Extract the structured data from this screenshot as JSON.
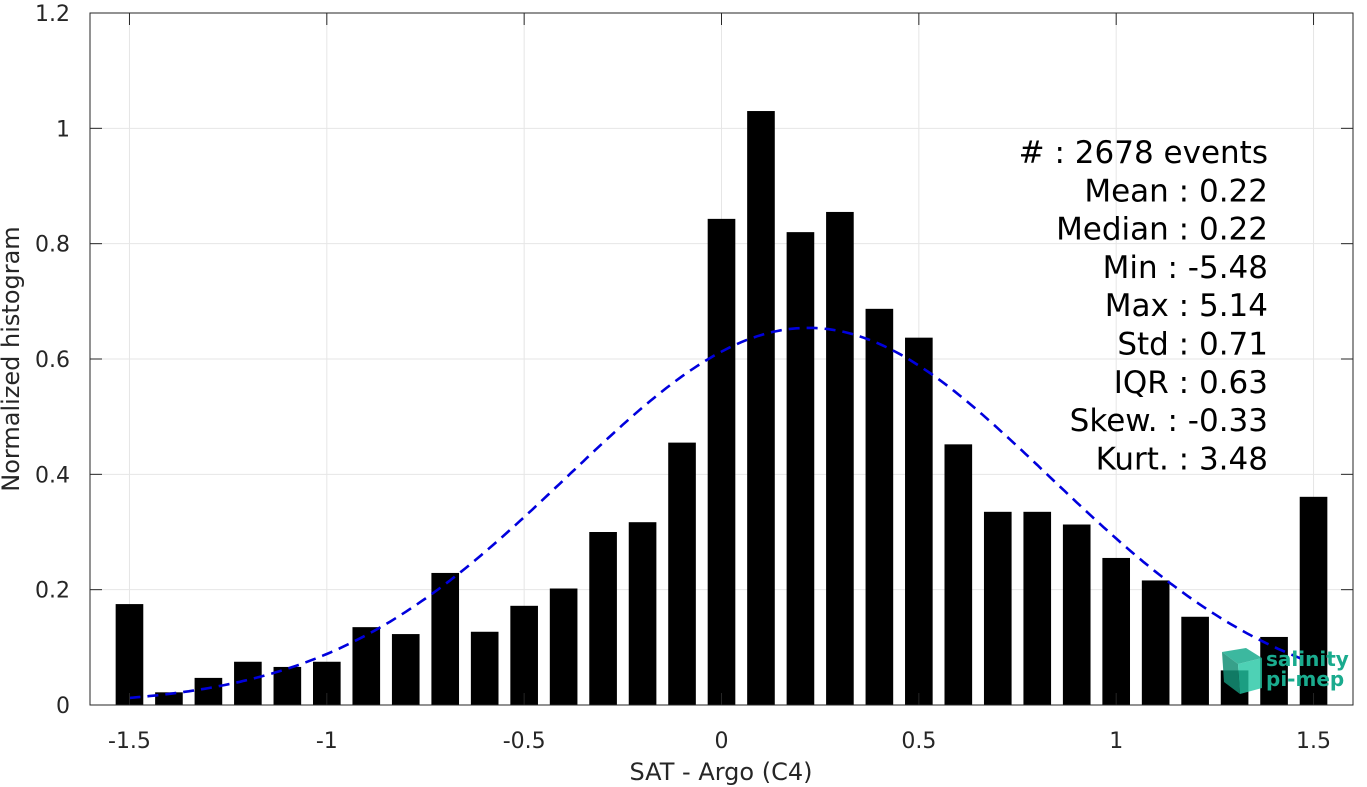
{
  "chart_data": {
    "type": "bar",
    "xlabel": "SAT - Argo (C4)",
    "ylabel": "Normalized histogram",
    "xlim": [
      -1.6,
      1.6
    ],
    "ylim": [
      0,
      1.2
    ],
    "xticks": [
      -1.5,
      -1,
      -0.5,
      0,
      0.5,
      1,
      1.5
    ],
    "xtick_labels": [
      "-1.5",
      "-1",
      "-0.5",
      "0",
      "0.5",
      "1",
      "1.5"
    ],
    "yticks": [
      0,
      0.2,
      0.4,
      0.6,
      0.8,
      1,
      1.2
    ],
    "ytick_labels": [
      "0",
      "0.2",
      "0.4",
      "0.6",
      "0.8",
      "1",
      "1.2"
    ],
    "grid": true,
    "bin_width": 0.1,
    "bar_color": "#000000",
    "x": [
      -1.5,
      -1.4,
      -1.3,
      -1.2,
      -1.1,
      -1.0,
      -0.9,
      -0.8,
      -0.7,
      -0.6,
      -0.5,
      -0.4,
      -0.3,
      -0.2,
      -0.1,
      0.0,
      0.1,
      0.2,
      0.3,
      0.4,
      0.5,
      0.6,
      0.7,
      0.8,
      0.9,
      1.0,
      1.1,
      1.2,
      1.3,
      1.4,
      1.5
    ],
    "values": [
      0.175,
      0.022,
      0.047,
      0.075,
      0.066,
      0.075,
      0.135,
      0.123,
      0.229,
      0.127,
      0.172,
      0.202,
      0.3,
      0.317,
      0.455,
      0.843,
      1.03,
      0.82,
      0.855,
      0.687,
      0.637,
      0.452,
      0.335,
      0.335,
      0.313,
      0.255,
      0.216,
      0.153,
      0.06,
      0.118,
      0.361
    ],
    "fit": {
      "type": "gaussian",
      "mean": 0.22,
      "std": 0.61,
      "peak": 0.654,
      "color": "#0000dd",
      "style": "dashed",
      "x_range": [
        -1.5,
        1.48
      ]
    },
    "annotations": [
      "#  : 2678 events",
      "Mean : 0.22",
      "Median : 0.22",
      "Min : -5.48",
      "Max : 5.14",
      "Std : 0.71",
      "IQR : 0.63",
      "Skew. : -0.33",
      "Kurt. : 3.48"
    ]
  },
  "logo": {
    "line1": "salinity",
    "line2": "pi-mep",
    "color": "#1aab8e"
  }
}
